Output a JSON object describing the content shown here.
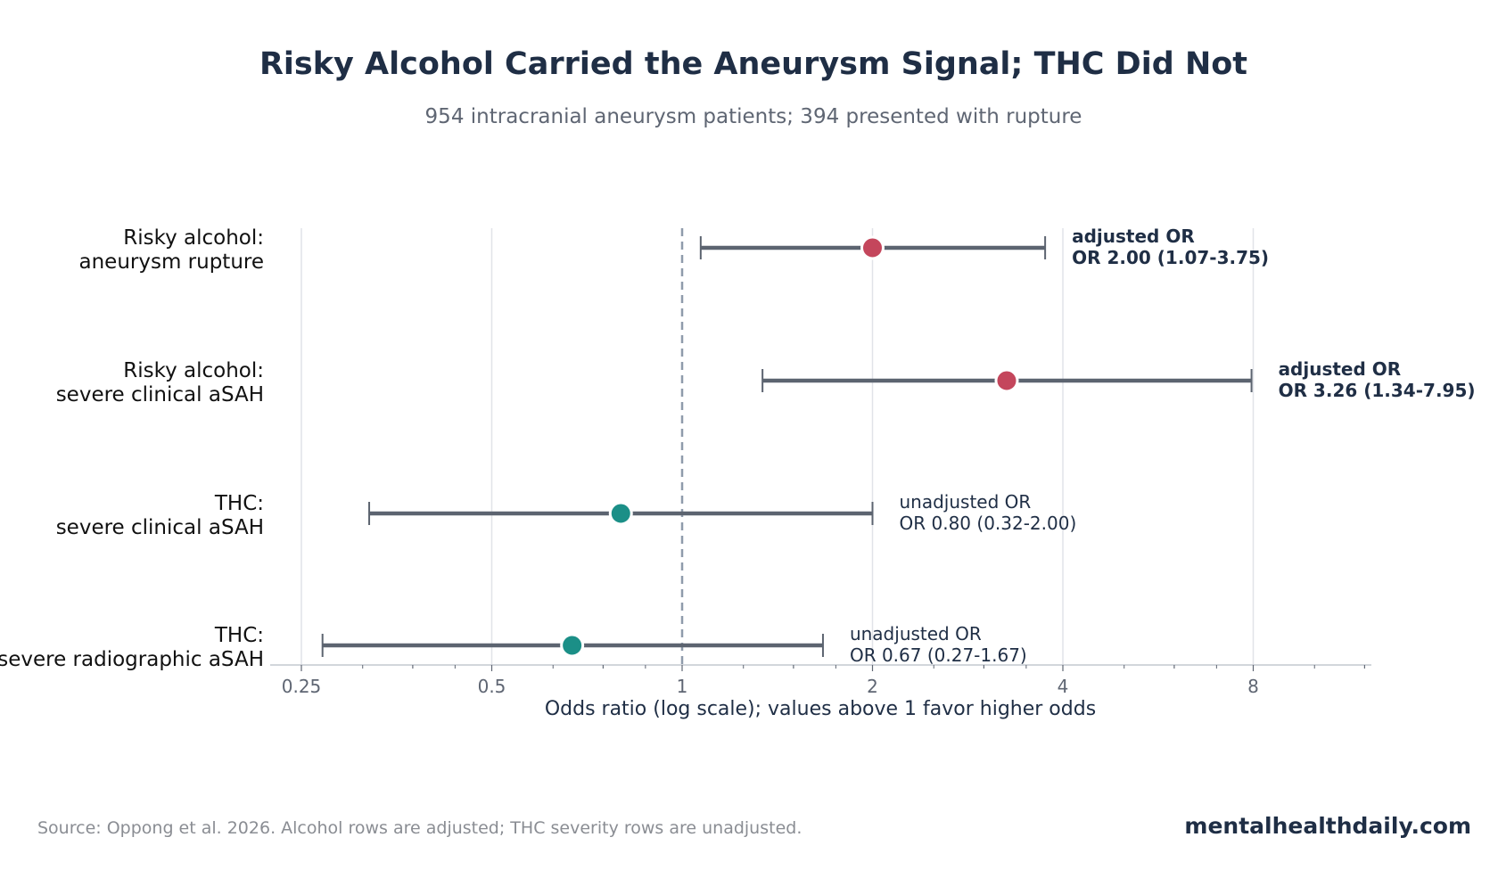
{
  "title": "Risky Alcohol Carried the Aneurysm Signal; THC Did Not",
  "subtitle": "954 intracranial aneurysm patients; 394 presented with rupture",
  "footer": {
    "source": "Source: Oppong et al. 2026. Alcohol rows are adjusted; THC severity rows are unadjusted.",
    "brand": "mentalhealthdaily.com"
  },
  "colors": {
    "alcohol": "#c4465c",
    "thc": "#1b8f87",
    "ci_line": "#5c6470",
    "text_dark": "#1f2e45",
    "grid": "#e1e3e8",
    "reference": "#8f9bab"
  },
  "chart_data": {
    "type": "forest",
    "title": "Risky Alcohol Carried the Aneurysm Signal; THC Did Not",
    "subtitle": "954 intracranial aneurysm patients; 394 presented with rupture",
    "xlabel": "Odds ratio (log scale); values above 1 favor higher odds",
    "x_scale": "log2",
    "xlim": [
      0.22,
      10
    ],
    "x_ticks": [
      0.25,
      0.5,
      1,
      2,
      4,
      8
    ],
    "x_tick_labels": [
      "0.25",
      "0.5",
      "1",
      "2",
      "4",
      "8"
    ],
    "reference_line": 1,
    "grid": "vertical",
    "rows": [
      {
        "label": [
          "Risky alcohol:",
          "aneurysm rupture"
        ],
        "or": 2.0,
        "ci_low": 1.07,
        "ci_high": 3.75,
        "group": "alcohol",
        "annotation": [
          "adjusted OR",
          "OR 2.00 (1.07-3.75)"
        ],
        "bold": true
      },
      {
        "label": [
          "Risky alcohol:",
          "severe clinical aSAH"
        ],
        "or": 3.26,
        "ci_low": 1.34,
        "ci_high": 7.95,
        "group": "alcohol",
        "annotation": [
          "adjusted OR",
          "OR 3.26 (1.34-7.95)"
        ],
        "bold": true
      },
      {
        "label": [
          "THC:",
          "severe clinical aSAH"
        ],
        "or": 0.8,
        "ci_low": 0.32,
        "ci_high": 2.0,
        "group": "thc",
        "annotation": [
          "unadjusted OR",
          "OR 0.80 (0.32-2.00)"
        ],
        "bold": false
      },
      {
        "label": [
          "THC:",
          "severe radiographic aSAH"
        ],
        "or": 0.67,
        "ci_low": 0.27,
        "ci_high": 1.67,
        "group": "thc",
        "annotation": [
          "unadjusted OR",
          "OR 0.67 (0.27-1.67)"
        ],
        "bold": false
      }
    ]
  }
}
